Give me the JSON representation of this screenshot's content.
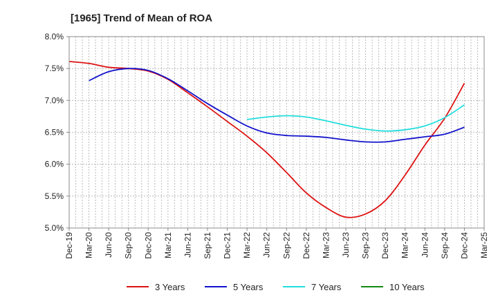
{
  "chart_data": {
    "type": "line",
    "title": "[1965]  Trend of Mean of ROA",
    "xlabel": "",
    "ylabel": "",
    "ylim": [
      5.0,
      8.0
    ],
    "yticks": [
      5.0,
      5.5,
      6.0,
      6.5,
      7.0,
      7.5,
      8.0
    ],
    "ytick_labels": [
      "5.0%",
      "5.5%",
      "6.0%",
      "6.5%",
      "7.0%",
      "7.5%",
      "8.0%"
    ],
    "x_tick_labels": [
      "Dec-19",
      "Mar-20",
      "Jun-20",
      "Sep-20",
      "Dec-20",
      "Mar-21",
      "Jun-21",
      "Sep-21",
      "Dec-21",
      "Mar-22",
      "Jun-22",
      "Sep-22",
      "Dec-22",
      "Mar-23",
      "Jun-23",
      "Sep-23",
      "Dec-23",
      "Mar-24",
      "Jun-24",
      "Sep-24",
      "Dec-24",
      "Mar-25"
    ],
    "grid": true,
    "legend_position": "bottom",
    "series": [
      {
        "name": "3 Years",
        "color": "#dd1111",
        "values": [
          7.61,
          7.58,
          7.52,
          7.5,
          7.46,
          7.33,
          7.12,
          6.9,
          6.67,
          6.44,
          6.18,
          5.87,
          5.55,
          5.32,
          5.17,
          5.22,
          5.43,
          5.83,
          6.3,
          6.72,
          7.27,
          null
        ]
      },
      {
        "name": "5 Years",
        "color": "#1111cc",
        "values": [
          null,
          7.31,
          7.45,
          7.5,
          7.47,
          7.34,
          7.15,
          6.95,
          6.77,
          6.6,
          6.49,
          6.45,
          6.44,
          6.42,
          6.38,
          6.35,
          6.35,
          6.39,
          6.43,
          6.47,
          6.58,
          null
        ]
      },
      {
        "name": "7 Years",
        "color": "#22dddd",
        "values": [
          null,
          null,
          null,
          null,
          null,
          null,
          null,
          null,
          null,
          6.7,
          6.74,
          6.76,
          6.74,
          6.68,
          6.61,
          6.55,
          6.52,
          6.54,
          6.6,
          6.73,
          6.93,
          null
        ]
      },
      {
        "name": "10 Years",
        "color": "#118811",
        "values": []
      }
    ]
  }
}
